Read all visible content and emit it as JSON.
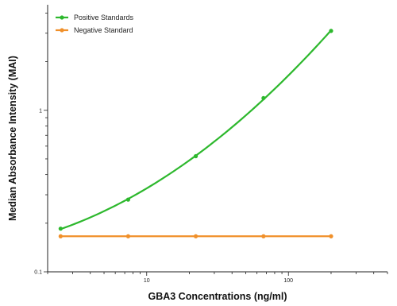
{
  "chart_data": {
    "type": "line",
    "title": "",
    "xlabel": "GBA3 Concentrations (ng/ml)",
    "ylabel": "Median Absorbance Intensity (MAI)",
    "x_scale": "log",
    "y_scale": "log",
    "xlim": [
      2,
      500
    ],
    "ylim": [
      0.1,
      4.5
    ],
    "x_ticks": [
      {
        "value": 10,
        "label": "10"
      },
      {
        "value": 100,
        "label": "100"
      }
    ],
    "y_ticks": [
      {
        "value": 0.1,
        "label": "0.1"
      },
      {
        "value": 1,
        "label": "1"
      }
    ],
    "grid": false,
    "legend": "top-left",
    "series": [
      {
        "name": "Positive Standards",
        "color": "#2db82d",
        "x": [
          2.47,
          7.4,
          22.2,
          66.7,
          200
        ],
        "y": [
          0.185,
          0.28,
          0.52,
          1.19,
          3.1
        ],
        "fit": "curve"
      },
      {
        "name": "Negative Standard",
        "color": "#f0902a",
        "x": [
          2.47,
          7.4,
          22.2,
          66.7,
          200
        ],
        "y": [
          0.166,
          0.166,
          0.166,
          0.166,
          0.166
        ],
        "fit": "line"
      }
    ]
  }
}
